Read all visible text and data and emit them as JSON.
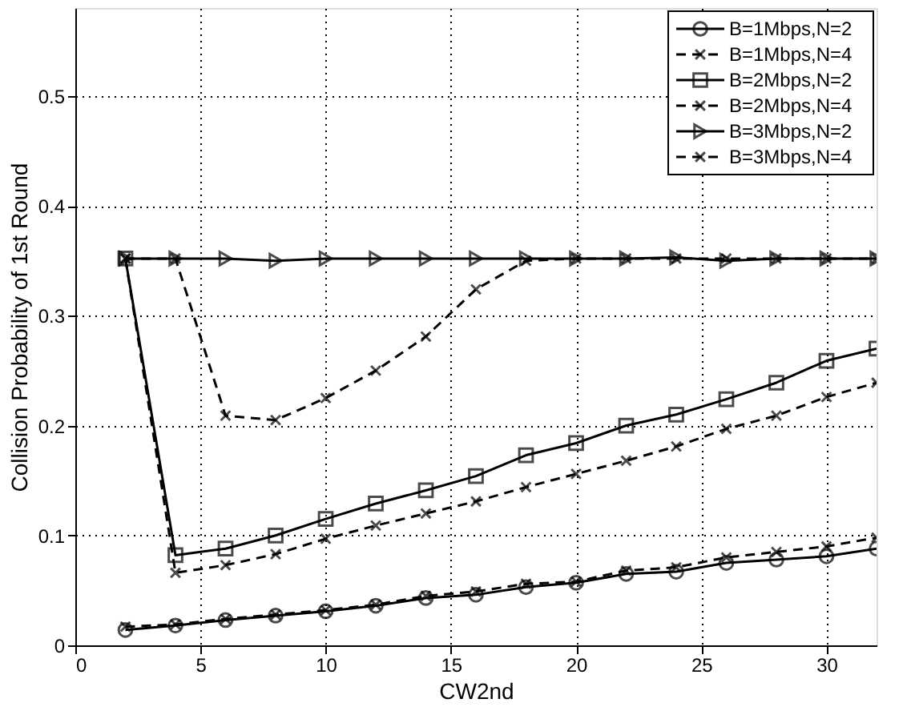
{
  "chart_data": {
    "type": "line",
    "xlabel": "CW2nd",
    "ylabel": "Collision Probability of 1st Round",
    "x": [
      2,
      4,
      6,
      8,
      10,
      12,
      14,
      16,
      18,
      20,
      22,
      24,
      26,
      28,
      30,
      32
    ],
    "series": [
      {
        "name": "B=1Mbps,N=2",
        "color": "#000000",
        "marker": "circle",
        "line_style": "solid",
        "values": [
          0.014,
          0.018,
          0.023,
          0.027,
          0.031,
          0.036,
          0.043,
          0.046,
          0.053,
          0.057,
          0.065,
          0.067,
          0.075,
          0.078,
          0.081,
          0.088
        ]
      },
      {
        "name": "B=1Mbps,N=4",
        "color": "#000000",
        "marker": "cross",
        "line_style": "dashed",
        "values": [
          0.017,
          0.019,
          0.024,
          0.028,
          0.032,
          0.037,
          0.045,
          0.049,
          0.056,
          0.058,
          0.068,
          0.071,
          0.08,
          0.085,
          0.09,
          0.098
        ]
      },
      {
        "name": "B=2Mbps,N=2",
        "color": "#000000",
        "marker": "square",
        "line_style": "solid",
        "values": [
          0.352,
          0.082,
          0.088,
          0.1,
          0.115,
          0.129,
          0.141,
          0.154,
          0.173,
          0.184,
          0.2,
          0.21,
          0.224,
          0.239,
          0.259,
          0.27
        ]
      },
      {
        "name": "B=2Mbps,N=4",
        "color": "#000000",
        "marker": "cross",
        "line_style": "dashed",
        "values": [
          0.352,
          0.066,
          0.073,
          0.083,
          0.097,
          0.109,
          0.12,
          0.131,
          0.144,
          0.156,
          0.168,
          0.181,
          0.197,
          0.209,
          0.226,
          0.239
        ]
      },
      {
        "name": "B=3Mbps,N=2",
        "color": "#000000",
        "marker": "triangle",
        "line_style": "solid",
        "values": [
          0.352,
          0.352,
          0.352,
          0.35,
          0.352,
          0.352,
          0.352,
          0.352,
          0.352,
          0.352,
          0.352,
          0.353,
          0.35,
          0.352,
          0.352,
          0.352
        ]
      },
      {
        "name": "B=3Mbps,N=4",
        "color": "#000000",
        "marker": "cross",
        "line_style": "dashed",
        "values": [
          0.352,
          0.352,
          0.209,
          0.205,
          0.225,
          0.25,
          0.281,
          0.324,
          0.35,
          0.352,
          0.352,
          0.352,
          0.352,
          0.352,
          0.352,
          0.352
        ]
      }
    ],
    "xlim": [
      0,
      32
    ],
    "xticks": [
      0,
      5,
      10,
      15,
      20,
      25,
      30
    ],
    "ylim": [
      0,
      0.58
    ],
    "yticks": [
      0,
      0.1,
      0.2,
      0.3,
      0.4,
      0.5
    ],
    "grid": true,
    "legend": "top right"
  }
}
